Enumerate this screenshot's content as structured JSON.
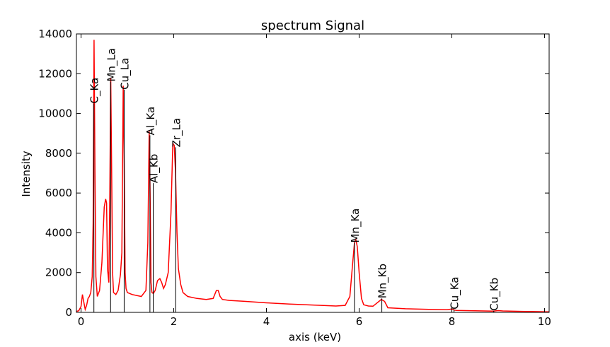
{
  "chart_data": {
    "type": "line",
    "title": "spectrum Signal",
    "xlabel": "axis (keV)",
    "ylabel": "Intensity",
    "xlim": [
      -0.1,
      10.1
    ],
    "ylim": [
      0,
      14000
    ],
    "xticks": [
      0,
      2,
      4,
      6,
      8,
      10
    ],
    "yticks": [
      0,
      2000,
      4000,
      6000,
      8000,
      10000,
      12000,
      14000
    ],
    "grid": false,
    "series": [
      {
        "color": "#ff0000",
        "x": [
          -0.1,
          -0.05,
          0.0,
          0.03,
          0.06,
          0.09,
          0.12,
          0.15,
          0.18,
          0.21,
          0.24,
          0.26,
          0.28,
          0.3,
          0.32,
          0.35,
          0.4,
          0.45,
          0.5,
          0.53,
          0.55,
          0.57,
          0.6,
          0.62,
          0.64,
          0.66,
          0.68,
          0.7,
          0.75,
          0.8,
          0.85,
          0.88,
          0.91,
          0.93,
          0.95,
          0.97,
          1.0,
          1.05,
          1.1,
          1.2,
          1.3,
          1.4,
          1.44,
          1.47,
          1.49,
          1.51,
          1.53,
          1.56,
          1.6,
          1.65,
          1.7,
          1.74,
          1.78,
          1.82,
          1.88,
          1.94,
          1.98,
          2.01,
          2.04,
          2.07,
          2.1,
          2.15,
          2.2,
          2.3,
          2.5,
          2.7,
          2.85,
          2.92,
          2.96,
          3.0,
          3.05,
          3.2,
          3.5,
          4.0,
          4.5,
          5.0,
          5.5,
          5.7,
          5.8,
          5.85,
          5.9,
          5.93,
          5.96,
          6.0,
          6.05,
          6.1,
          6.2,
          6.3,
          6.4,
          6.48,
          6.55,
          6.62,
          7.0,
          7.5,
          7.9,
          8.0,
          8.05,
          8.1,
          8.5,
          8.9,
          9.0,
          9.1,
          9.5,
          10.1
        ],
        "y": [
          50,
          80,
          300,
          900,
          500,
          150,
          350,
          700,
          800,
          1000,
          1800,
          4500,
          13700,
          7000,
          1800,
          800,
          1100,
          2500,
          5300,
          5700,
          5500,
          2200,
          1500,
          6000,
          11800,
          7000,
          2000,
          1000,
          900,
          1100,
          1900,
          3000,
          11400,
          7500,
          2000,
          1200,
          1000,
          950,
          900,
          850,
          800,
          1100,
          3500,
          9100,
          6000,
          1500,
          1000,
          950,
          1100,
          1600,
          1700,
          1500,
          1200,
          1400,
          2000,
          5000,
          8500,
          8400,
          7000,
          4000,
          2200,
          1400,
          1000,
          800,
          700,
          650,
          700,
          1100,
          1100,
          800,
          650,
          600,
          560,
          480,
          420,
          370,
          320,
          350,
          800,
          2200,
          3500,
          3650,
          3300,
          2000,
          700,
          380,
          320,
          310,
          500,
          650,
          550,
          230,
          180,
          150,
          130,
          170,
          120,
          100,
          80,
          60,
          90,
          70,
          50,
          30
        ]
      }
    ],
    "lines": [
      {
        "label": "C_Ka",
        "x": 0.277,
        "height": 10500
      },
      {
        "label": "Mn_La",
        "x": 0.637,
        "height": 11600
      },
      {
        "label": "Cu_La",
        "x": 0.93,
        "height": 11200
      },
      {
        "label": "Al_Ka",
        "x": 1.486,
        "height": 8900
      },
      {
        "label": "Al_Kb",
        "x": 1.557,
        "height": 6500
      },
      {
        "label": "Zr_La",
        "x": 2.042,
        "height": 8300
      },
      {
        "label": "Mn_Ka",
        "x": 5.899,
        "height": 3500
      },
      {
        "label": "Mn_Kb",
        "x": 6.49,
        "height": 700
      },
      {
        "label": "Cu_Ka",
        "x": 8.048,
        "height": 150
      },
      {
        "label": "Cu_Kb",
        "x": 8.905,
        "height": 80
      }
    ]
  }
}
